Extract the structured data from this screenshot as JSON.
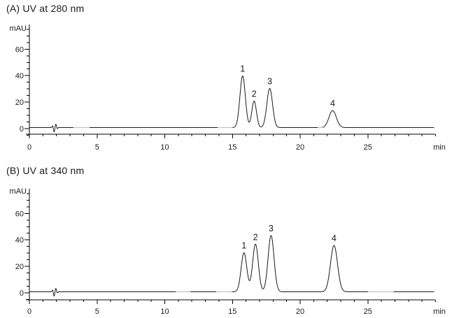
{
  "figure": {
    "background_color": "#ffffff",
    "trace_color": "#1a1a1a",
    "axis_color": "#000000",
    "text_color": "#1a1a1a",
    "artifact_color": "#c8c8c8"
  },
  "chart_data": [
    {
      "type": "line",
      "title": "(A) UV at 280 nm",
      "ylabel": "mAU",
      "xlabel": "min",
      "xlim": [
        0,
        30
      ],
      "ylim": [
        -6,
        78
      ],
      "grid": false,
      "legend": null,
      "x_major_ticks": [
        0,
        5,
        10,
        15,
        20,
        25
      ],
      "x_minor_step": 1,
      "y_major_ticks": [
        0,
        20,
        40,
        60
      ],
      "y_minor_step": 5,
      "baseline_mau": 0.8,
      "peaks": [
        {
          "label": "1",
          "rt_min": 15.75,
          "height_mau": 39.0,
          "sigma_min": 0.2
        },
        {
          "label": "2",
          "rt_min": 16.6,
          "height_mau": 20.0,
          "sigma_min": 0.17
        },
        {
          "label": "3",
          "rt_min": 17.75,
          "height_mau": 29.5,
          "sigma_min": 0.21
        },
        {
          "label": "4",
          "rt_min": 22.4,
          "height_mau": 12.8,
          "sigma_min": 0.27
        }
      ],
      "injection_artifact": [
        {
          "t_min": 1.72,
          "amp_mau": 1.3,
          "sigma_min": 0.04
        },
        {
          "t_min": 1.83,
          "amp_mau": -3.3,
          "sigma_min": 0.045
        },
        {
          "t_min": 1.95,
          "amp_mau": 2.6,
          "sigma_min": 0.045
        },
        {
          "t_min": 2.06,
          "amp_mau": -0.9,
          "sigma_min": 0.04
        }
      ],
      "gray_baseline_segments_min": [
        [
          3.25,
          4.45
        ],
        [
          13.9,
          15.0
        ],
        [
          21.3,
          21.85
        ]
      ]
    },
    {
      "type": "line",
      "title": "(B) UV at 340 nm",
      "ylabel": "mAU",
      "xlabel": "min",
      "xlim": [
        0,
        30
      ],
      "ylim": [
        -6,
        78
      ],
      "grid": false,
      "legend": null,
      "x_major_ticks": [
        0,
        5,
        10,
        15,
        20,
        25
      ],
      "x_minor_step": 1,
      "y_major_ticks": [
        0,
        20,
        40,
        60
      ],
      "y_minor_step": 5,
      "baseline_mau": 0.8,
      "peaks": [
        {
          "label": "1",
          "rt_min": 15.85,
          "height_mau": 29.5,
          "sigma_min": 0.21
        },
        {
          "label": "2",
          "rt_min": 16.7,
          "height_mau": 36.0,
          "sigma_min": 0.21
        },
        {
          "label": "3",
          "rt_min": 17.85,
          "height_mau": 42.5,
          "sigma_min": 0.22
        },
        {
          "label": "4",
          "rt_min": 22.5,
          "height_mau": 35.0,
          "sigma_min": 0.26
        }
      ],
      "injection_artifact": [
        {
          "t_min": 1.72,
          "amp_mau": 1.3,
          "sigma_min": 0.04
        },
        {
          "t_min": 1.83,
          "amp_mau": -3.3,
          "sigma_min": 0.045
        },
        {
          "t_min": 1.95,
          "amp_mau": 2.6,
          "sigma_min": 0.045
        },
        {
          "t_min": 2.06,
          "amp_mau": -0.9,
          "sigma_min": 0.04
        }
      ],
      "gray_baseline_segments_min": [
        [
          10.8,
          11.9
        ],
        [
          13.8,
          14.95
        ],
        [
          25.0,
          26.9
        ]
      ]
    }
  ]
}
